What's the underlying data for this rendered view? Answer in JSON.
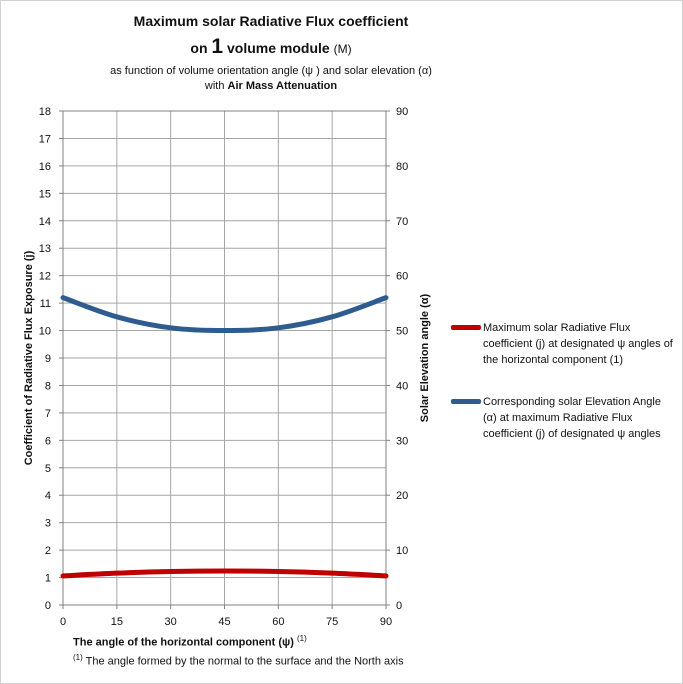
{
  "title": {
    "line1": "Maximum solar Radiative Flux  coefficient",
    "line2_prefix": "on ",
    "line2_number": "1",
    "line2_suffix": " volume module ",
    "line2_m": "(M)",
    "subtitle1": "as function of volume orientation angle  (ψ ) and solar elevation  (α)",
    "subtitle2_prefix": "with ",
    "subtitle2_bold": "Air Mass Attenuation"
  },
  "axes": {
    "xlabel": "The angle  of the horizontal component  (ψ)",
    "xlabel_sup": "(1)",
    "ylabel_left": "Coefficient of Radiative Flux Exposure (j)",
    "ylabel_right": "Solar Elevation  angle (α)"
  },
  "footnote": {
    "sup": "(1)",
    "text": " The angle formed by the normal to the surface  and the North axis"
  },
  "legend": [
    "Maximum solar Radiative  Flux coefficient (j) at designated ψ angles of the horizontal component (1)",
    "Corresponding solar Elevation Angle (α) at maximum  Radiative Flux coefficient (j)  of designated ψ angles"
  ],
  "colors": {
    "series1": "#c00000",
    "series2": "#2e5c8f",
    "grid": "#a6a6a6"
  },
  "chart_data": {
    "type": "line",
    "x": [
      0,
      15,
      30,
      45,
      60,
      75,
      90
    ],
    "xticks": [
      "0",
      "15",
      "30",
      "45",
      "60",
      "75",
      "90"
    ],
    "xlim": [
      0,
      90
    ],
    "ylim_left": [
      0,
      18
    ],
    "yticks_left": [
      "0",
      "1",
      "2",
      "3",
      "4",
      "5",
      "6",
      "7",
      "8",
      "9",
      "10",
      "11",
      "12",
      "13",
      "14",
      "15",
      "16",
      "17",
      "18"
    ],
    "ylim_right": [
      0,
      90
    ],
    "yticks_right": [
      "0",
      "10",
      "20",
      "30",
      "40",
      "50",
      "60",
      "70",
      "80",
      "90"
    ],
    "grid": true,
    "legend_position": "right",
    "series": [
      {
        "name": "Maximum solar Radiative  Flux coefficient (j) at designated ψ angles of the horizontal component (1)",
        "axis": "left",
        "values": [
          1.06,
          1.16,
          1.22,
          1.24,
          1.22,
          1.16,
          1.06
        ]
      },
      {
        "name": "Corresponding solar Elevation Angle (α) at maximum  Radiative Flux coefficient (j)  of designated ψ angles",
        "axis": "right",
        "values": [
          56,
          52.5,
          50.5,
          50,
          50.5,
          52.5,
          56
        ]
      }
    ]
  }
}
